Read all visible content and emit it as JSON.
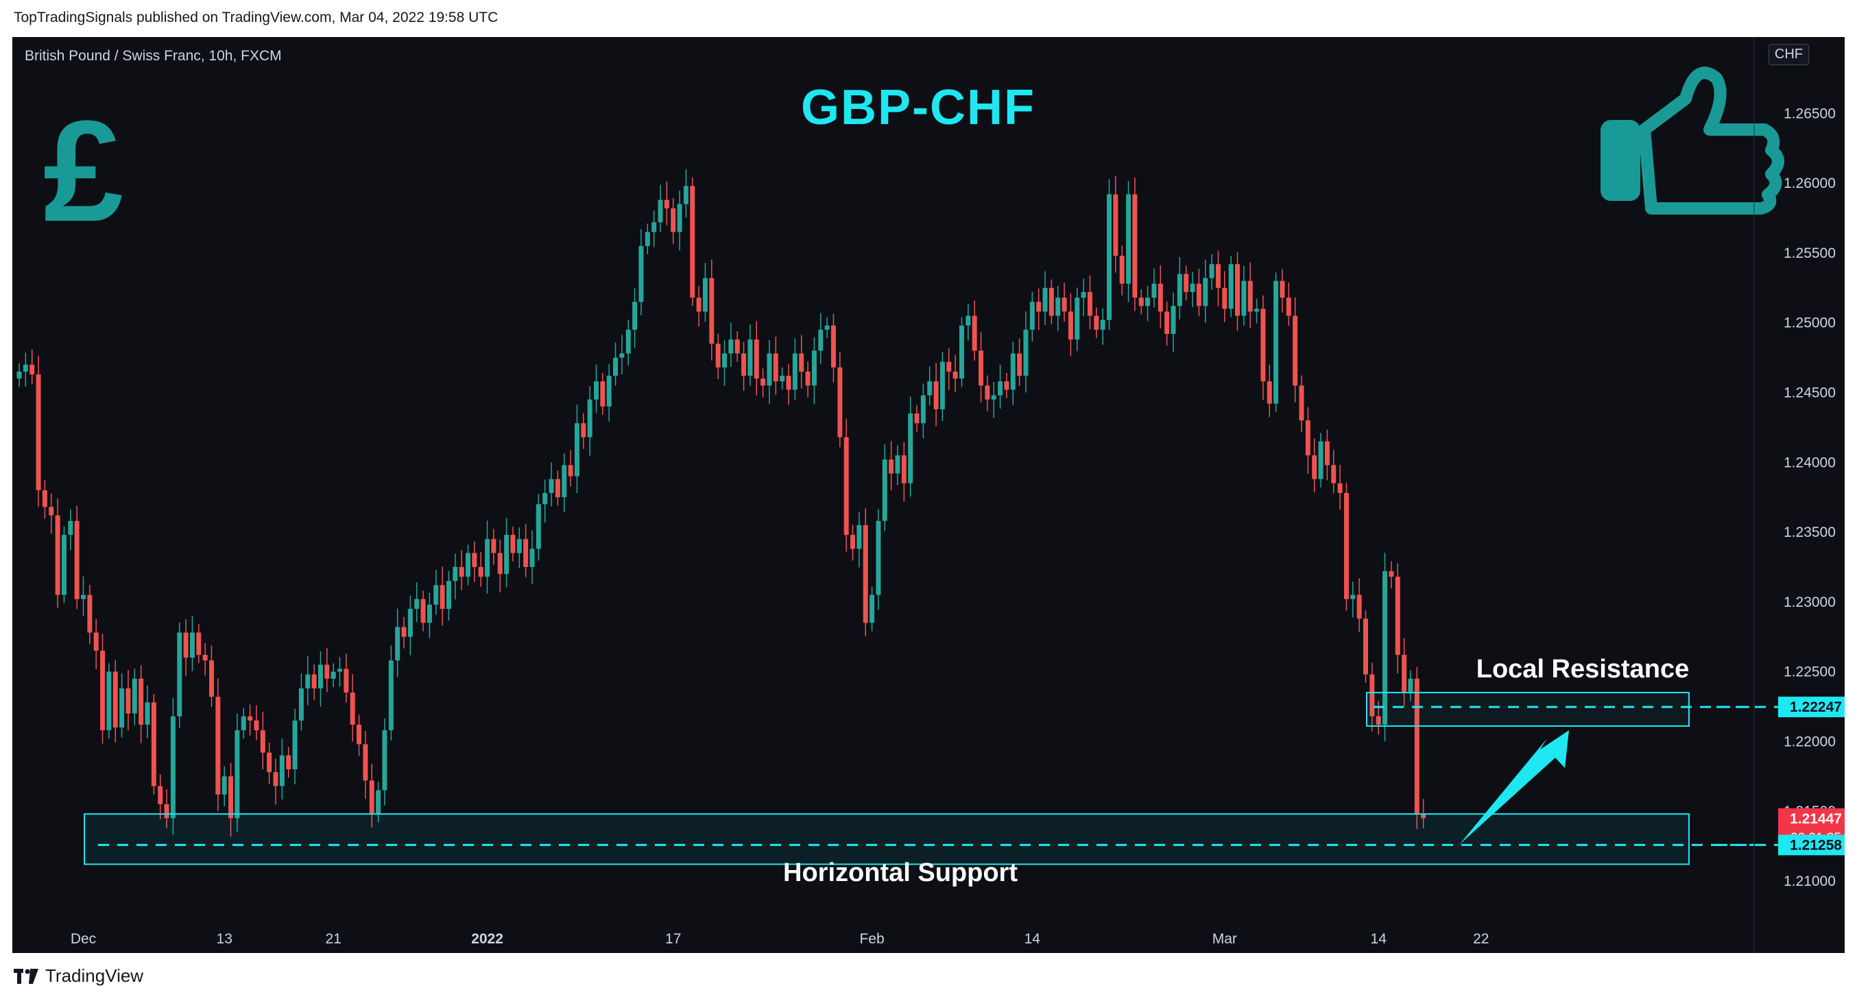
{
  "header": {
    "published": "TopTradingSignals published on TradingView.com, Mar 04, 2022 19:58 UTC"
  },
  "footer": {
    "brand": "TradingView"
  },
  "chart_data": {
    "type": "candlestick",
    "instrument": "British Pound / Swiss Franc, 10h, FXCM",
    "currency": "CHF",
    "title": "GBP-CHF",
    "ylim": [
      1.207,
      1.269
    ],
    "y_ticks": [
      "1.26500",
      "1.26000",
      "1.25500",
      "1.25000",
      "1.24500",
      "1.24000",
      "1.23500",
      "1.23000",
      "1.22500",
      "1.22000",
      "1.21500",
      "1.21000"
    ],
    "x_tick_labels": [
      {
        "label": "Dec",
        "index": 10
      },
      {
        "label": "13",
        "index": 32
      },
      {
        "label": "21",
        "index": 49
      },
      {
        "label": "2022",
        "index": 73
      },
      {
        "label": "17",
        "index": 102
      },
      {
        "label": "Feb",
        "index": 133
      },
      {
        "label": "14",
        "index": 158
      },
      {
        "label": "Mar",
        "index": 188
      },
      {
        "label": "14",
        "index": 212
      },
      {
        "label": "22",
        "index": 228
      }
    ],
    "closes": [
      1.2465,
      1.247,
      1.2463,
      1.238,
      1.2368,
      1.2362,
      1.2305,
      1.2348,
      1.2358,
      1.2302,
      1.2305,
      1.2278,
      1.2265,
      1.2208,
      1.225,
      1.221,
      1.2238,
      1.222,
      1.2245,
      1.2212,
      1.2228,
      1.2168,
      1.2155,
      1.2145,
      1.2218,
      1.2278,
      1.226,
      1.2278,
      1.2262,
      1.2258,
      1.2232,
      1.2162,
      1.2175,
      1.2145,
      1.2208,
      1.2218,
      1.2215,
      1.2208,
      1.2192,
      1.2178,
      1.2168,
      1.219,
      1.218,
      1.2215,
      1.2238,
      1.2248,
      1.2238,
      1.2255,
      1.2245,
      1.225,
      1.2252,
      1.2235,
      1.2212,
      1.2198,
      1.2172,
      1.2148,
      1.2165,
      1.2208,
      1.2258,
      1.2282,
      1.2275,
      1.2295,
      1.2302,
      1.2285,
      1.2298,
      1.2312,
      1.2295,
      1.2315,
      1.2325,
      1.2318,
      1.2335,
      1.2325,
      1.2318,
      1.2345,
      1.2335,
      1.232,
      1.2348,
      1.2335,
      1.2345,
      1.2325,
      1.2338,
      1.237,
      1.2378,
      1.2388,
      1.2375,
      1.2398,
      1.239,
      1.2428,
      1.2418,
      1.2445,
      1.2458,
      1.244,
      1.2462,
      1.2475,
      1.2478,
      1.2495,
      1.2515,
      1.2555,
      1.2565,
      1.2572,
      1.2588,
      1.2582,
      1.2565,
      1.2585,
      1.2598,
      1.2518,
      1.2508,
      1.2532,
      1.2485,
      1.2468,
      1.2478,
      1.2488,
      1.2478,
      1.2462,
      1.2488,
      1.246,
      1.2455,
      1.2478,
      1.2458,
      1.2462,
      1.2452,
      1.2478,
      1.2465,
      1.2455,
      1.248,
      1.2495,
      1.2498,
      1.2468,
      1.2418,
      1.2348,
      1.2338,
      1.2355,
      1.2285,
      1.2305,
      1.2358,
      1.2402,
      1.2392,
      1.2405,
      1.2385,
      1.2435,
      1.2428,
      1.2448,
      1.2458,
      1.2438,
      1.2472,
      1.2465,
      1.246,
      1.2498,
      1.2505,
      1.248,
      1.2455,
      1.2445,
      1.2448,
      1.2458,
      1.2452,
      1.2478,
      1.2462,
      1.2495,
      1.2515,
      1.2508,
      1.2525,
      1.2505,
      1.2518,
      1.2508,
      1.2488,
      1.2518,
      1.2522,
      1.2505,
      1.2495,
      1.2502,
      1.2592,
      1.2548,
      1.2528,
      1.2592,
      1.2518,
      1.2512,
      1.2518,
      1.2528,
      1.2508,
      1.2492,
      1.2512,
      1.2535,
      1.2522,
      1.2528,
      1.2512,
      1.2532,
      1.2542,
      1.2525,
      1.251,
      1.2542,
      1.2505,
      1.253,
      1.2508,
      1.251,
      1.2458,
      1.2442,
      1.253,
      1.2518,
      1.2505,
      1.2455,
      1.243,
      1.2405,
      1.2388,
      1.2415,
      1.2398,
      1.2385,
      1.2378,
      1.2302,
      1.2305,
      1.2288,
      1.2248,
      1.2218,
      1.2212,
      1.2322,
      1.2318,
      1.2262,
      1.2235,
      1.2245,
      1.2148,
      1.2145
    ],
    "current_price": "1.21447",
    "countdown": "02:01:35",
    "levels": [
      {
        "value": "1.22247",
        "name": "resistance"
      },
      {
        "value": "1.21258",
        "name": "support"
      }
    ],
    "annotations": [
      "Local Resistance",
      "Horizontal Support"
    ],
    "colors": {
      "up": "#26a69a",
      "down": "#ef5350",
      "accent": "#1fe7f2",
      "badge_red": "#f23645",
      "background": "#0d0f15"
    }
  }
}
